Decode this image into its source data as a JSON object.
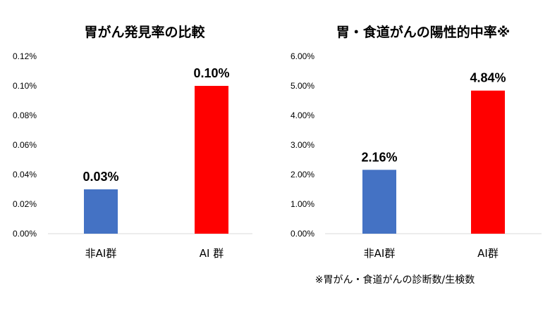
{
  "chart_data": [
    {
      "type": "bar",
      "title": "胃がん発見率の比較",
      "categories": [
        "非AI群",
        "AI 群"
      ],
      "values": [
        0.03,
        0.1
      ],
      "data_labels": [
        "0.03%",
        "0.10%"
      ],
      "colors": [
        "#4472c4",
        "#ff0000"
      ],
      "ylim": [
        0,
        0.12
      ],
      "yticks": [
        0,
        0.02,
        0.04,
        0.06,
        0.08,
        0.1,
        0.12
      ],
      "ytick_labels": [
        "0.00%",
        "0.02%",
        "0.04%",
        "0.06%",
        "0.08%",
        "0.10%",
        "0.12%"
      ],
      "grid": false,
      "xlabel": "",
      "ylabel": ""
    },
    {
      "type": "bar",
      "title": "胃・食道がんの陽性的中率※",
      "categories": [
        "非AI群",
        "AI群"
      ],
      "values": [
        2.16,
        4.84
      ],
      "data_labels": [
        "2.16%",
        "4.84%"
      ],
      "colors": [
        "#4472c4",
        "#ff0000"
      ],
      "ylim": [
        0,
        6
      ],
      "yticks": [
        0,
        1,
        2,
        3,
        4,
        5,
        6
      ],
      "ytick_labels": [
        "0.00%",
        "1.00%",
        "2.00%",
        "3.00%",
        "4.00%",
        "5.00%",
        "6.00%"
      ],
      "grid": false,
      "xlabel": "",
      "ylabel": "",
      "footnote": "※胃がん・食道がんの診断数/生検数"
    }
  ]
}
